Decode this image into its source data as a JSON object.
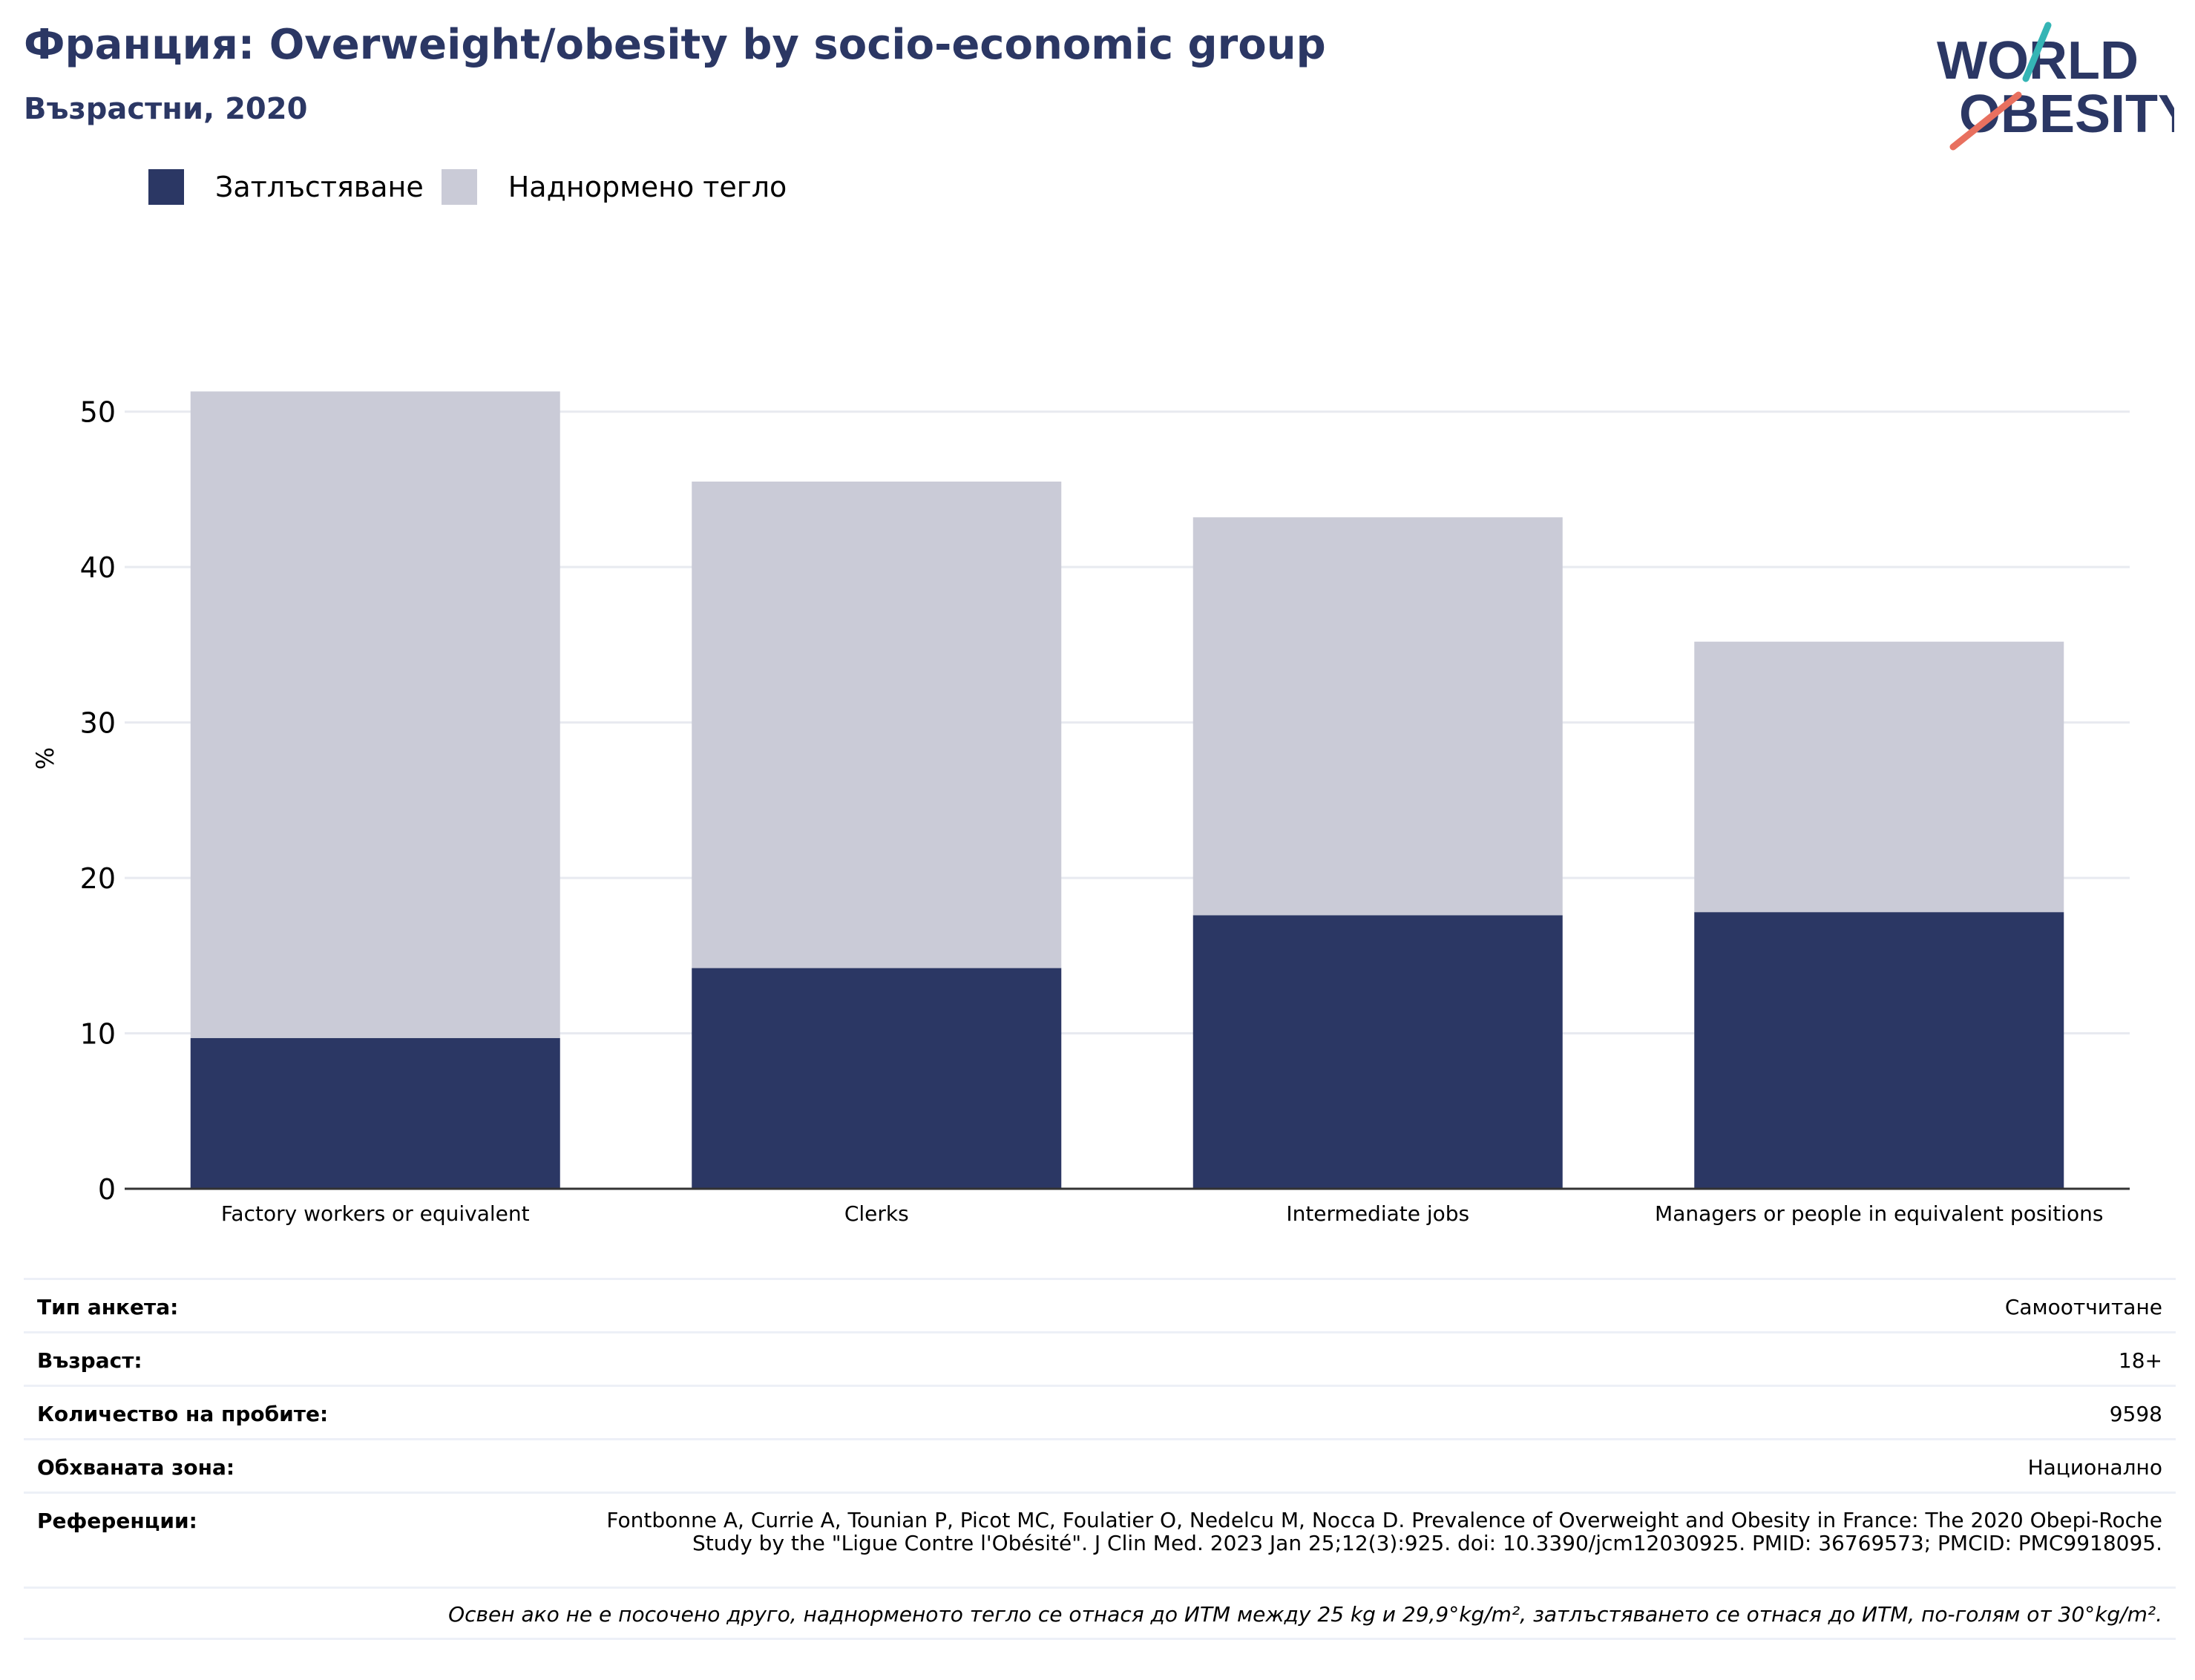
{
  "header": {
    "title": "Франция: Overweight/obesity by socio-economic group",
    "subtitle": "Възрастни, 2020"
  },
  "logo": {
    "line1": "WORLD",
    "line2": "OBESITY",
    "colors": {
      "text": "#2b3764",
      "accent_teal": "#35b5b5",
      "accent_coral": "#e8705f"
    }
  },
  "legend": {
    "items": [
      {
        "label": "Затлъстяване",
        "color": "#2b3764"
      },
      {
        "label": "Наднормено тегло",
        "color": "#cacbd7"
      }
    ]
  },
  "chart_data": {
    "type": "bar",
    "stacked": true,
    "categories": [
      "Factory workers or equivalent",
      "Clerks",
      "Intermediate jobs",
      "Managers or people in equivalent positions"
    ],
    "series": [
      {
        "name": "Затлъстяване",
        "color": "#2b3764",
        "values": [
          9.7,
          14.2,
          17.6,
          17.8
        ]
      },
      {
        "name": "Наднормено тегло",
        "color": "#cacbd7",
        "values": [
          41.6,
          31.3,
          25.6,
          17.4
        ]
      }
    ],
    "ylabel": "%",
    "xlabel": "",
    "ylim": [
      0,
      55
    ],
    "yticks": [
      0,
      10,
      20,
      30,
      40,
      50
    ],
    "grid": true,
    "legend_position": "top-left"
  },
  "info_table": {
    "survey_type": {
      "label": "Тип анкета:",
      "value": "Самоотчитане"
    },
    "age": {
      "label": "Възраст:",
      "value": "18+"
    },
    "sample_size": {
      "label": "Количество на пробите:",
      "value": "9598"
    },
    "area": {
      "label": "Обхваната зона:",
      "value": "Национално"
    },
    "references": {
      "label": "Референции:",
      "value": "Fontbonne A, Currie A, Tounian P, Picot MC, Foulatier O, Nedelcu M, Nocca D. Prevalence of Overweight and Obesity in France: The 2020 Obepi-Roche Study by the \"Ligue Contre l'Obésité\". J Clin Med. 2023 Jan 25;12(3):925. doi: 10.3390/jcm12030925. PMID: 36769573; PMCID: PMC9918095."
    },
    "note": "Освен ако не е посочено друго, наднорменото тегло се отнася до ИТМ между 25 kg и 29,9°kg/m², затлъстяването се отнася до ИТМ, по-голям от 30°kg/m²."
  }
}
